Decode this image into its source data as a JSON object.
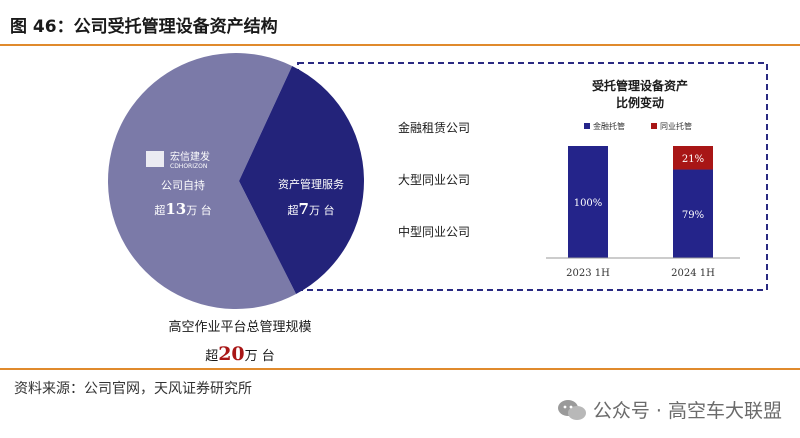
{
  "figure": {
    "title": "图 46：公司受托管理设备资产结构",
    "source": "资料来源：公司官网，天风证券研究所",
    "watermark": "公众号 · 高空车大联盟"
  },
  "colors": {
    "pie_owned": "#7b7aa8",
    "pie_service": "#23237a",
    "bar_finance": "#24248a",
    "bar_peer": "#a81616",
    "accent_rule": "#e08a2c",
    "dash_box": "#2a2a82"
  },
  "pie": {
    "logo_text": "宏信建发",
    "logo_sub": "CDHORIZON",
    "owned": {
      "label": "公司自持",
      "value_text_pre": "超",
      "value_num": "13",
      "value_text_post": "万 台",
      "share": 0.65
    },
    "service": {
      "label": "资产管理服务",
      "value_text_pre": "超",
      "value_num": "7",
      "value_text_post": "万 台",
      "share": 0.35
    },
    "total": {
      "label": "高空作业平台总管理规模",
      "value_text_pre": "超",
      "value_num": "20",
      "value_text_post": "万 台"
    }
  },
  "service_categories": [
    "金融租赁公司",
    "大型同业公司",
    "中型同业公司"
  ],
  "chart_data": {
    "type": "bar",
    "title": "受托管理设备资产\n比例变动",
    "title_lines": [
      "受托管理设备资产",
      "比例变动"
    ],
    "categories": [
      "2023 1H",
      "2024 1H"
    ],
    "stacked": true,
    "unit": "%",
    "ylim": [
      0,
      100
    ],
    "series": [
      {
        "name": "金融托管",
        "values": [
          100,
          79
        ],
        "labels": [
          "100%",
          "79%"
        ]
      },
      {
        "name": "同业托管",
        "values": [
          0,
          21
        ],
        "labels": [
          "",
          "21%"
        ]
      }
    ],
    "legend_position": "top"
  }
}
